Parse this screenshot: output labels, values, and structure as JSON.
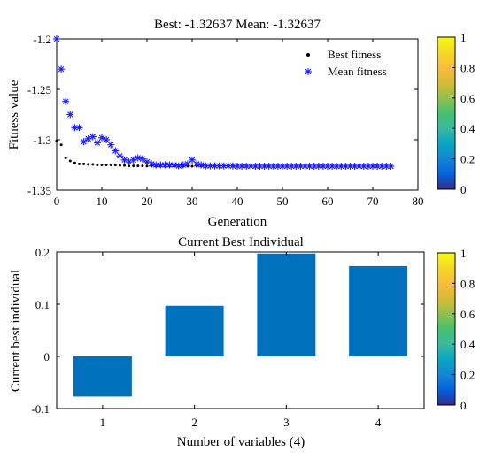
{
  "chart_data": [
    {
      "type": "scatter",
      "title": "Best: -1.32637 Mean: -1.32637",
      "xlabel": "Generation",
      "ylabel": "Fitness value",
      "xlim": [
        0,
        80
      ],
      "ylim": [
        -1.35,
        -1.2
      ],
      "x_ticks": [
        "0",
        "10",
        "20",
        "30",
        "40",
        "50",
        "60",
        "70",
        "80"
      ],
      "y_ticks": [
        "-1.2",
        "-1.25",
        "-1.3",
        "-1.35"
      ],
      "legend_position": "top-right",
      "series": [
        {
          "name": "Best fitness",
          "marker": "dot",
          "color": "#000000",
          "x": [
            0,
            1,
            2,
            3,
            4,
            5,
            6,
            7,
            8,
            9,
            10,
            11,
            12,
            13,
            14,
            15,
            16,
            17,
            18,
            19,
            20,
            21,
            22,
            23,
            24,
            25,
            26,
            27,
            28,
            29,
            30,
            31,
            32,
            33,
            34,
            35,
            36,
            37,
            38,
            39,
            40,
            41,
            42,
            43,
            44,
            45,
            46,
            47,
            48,
            49,
            50,
            51,
            52,
            53,
            54,
            55,
            56,
            57,
            58,
            59,
            60,
            61,
            62,
            63,
            64,
            65,
            66,
            67,
            68,
            69,
            70,
            71,
            72,
            73,
            74
          ],
          "y": [
            -1.301,
            -1.305,
            -1.318,
            -1.321,
            -1.323,
            -1.324,
            -1.324,
            -1.3245,
            -1.3245,
            -1.325,
            -1.325,
            -1.325,
            -1.325,
            -1.325,
            -1.3255,
            -1.3255,
            -1.326,
            -1.326,
            -1.326,
            -1.326,
            -1.3262,
            -1.3262,
            -1.3263,
            -1.3263,
            -1.3263,
            -1.3263,
            -1.3263,
            -1.3263,
            -1.3263,
            -1.3263,
            -1.3263,
            -1.3263,
            -1.3263,
            -1.3263,
            -1.3263,
            -1.3263,
            -1.3263,
            -1.3263,
            -1.3263,
            -1.3263,
            -1.3263,
            -1.3263,
            -1.3263,
            -1.3263,
            -1.3263,
            -1.3263,
            -1.3263,
            -1.3263,
            -1.3263,
            -1.3263,
            -1.3263,
            -1.3263,
            -1.3263,
            -1.3263,
            -1.3263,
            -1.3263,
            -1.3263,
            -1.3263,
            -1.3263,
            -1.3263,
            -1.3263,
            -1.3263,
            -1.3263,
            -1.3263,
            -1.3263,
            -1.3263,
            -1.3263,
            -1.3263,
            -1.3263,
            -1.3263,
            -1.3263,
            -1.3263,
            -1.3263,
            -1.3263,
            -1.3263
          ]
        },
        {
          "name": "Mean fitness",
          "marker": "asterisk",
          "color": "#1a1aff",
          "x": [
            0,
            1,
            2,
            3,
            4,
            5,
            6,
            7,
            8,
            9,
            10,
            11,
            12,
            13,
            14,
            15,
            16,
            17,
            18,
            19,
            20,
            21,
            22,
            23,
            24,
            25,
            26,
            27,
            28,
            29,
            30,
            31,
            32,
            33,
            34,
            35,
            36,
            37,
            38,
            39,
            40,
            41,
            42,
            43,
            44,
            45,
            46,
            47,
            48,
            49,
            50,
            51,
            52,
            53,
            54,
            55,
            56,
            57,
            58,
            59,
            60,
            61,
            62,
            63,
            64,
            65,
            66,
            67,
            68,
            69,
            70,
            71,
            72,
            73,
            74
          ],
          "y": [
            -1.2,
            -1.23,
            -1.262,
            -1.275,
            -1.288,
            -1.288,
            -1.302,
            -1.299,
            -1.297,
            -1.303,
            -1.298,
            -1.3,
            -1.305,
            -1.311,
            -1.316,
            -1.32,
            -1.322,
            -1.32,
            -1.318,
            -1.319,
            -1.322,
            -1.324,
            -1.325,
            -1.325,
            -1.325,
            -1.325,
            -1.325,
            -1.326,
            -1.325,
            -1.324,
            -1.32,
            -1.324,
            -1.325,
            -1.326,
            -1.326,
            -1.326,
            -1.326,
            -1.326,
            -1.326,
            -1.326,
            -1.3263,
            -1.3263,
            -1.3263,
            -1.3263,
            -1.3263,
            -1.3263,
            -1.3263,
            -1.3263,
            -1.3263,
            -1.3263,
            -1.3263,
            -1.3263,
            -1.3263,
            -1.3263,
            -1.3263,
            -1.3263,
            -1.3263,
            -1.3263,
            -1.3263,
            -1.3263,
            -1.3263,
            -1.3263,
            -1.3263,
            -1.3263,
            -1.3263,
            -1.3263,
            -1.3263,
            -1.3263,
            -1.3263,
            -1.3263,
            -1.3263,
            -1.3263,
            -1.3263,
            -1.3263,
            -1.3263
          ]
        }
      ],
      "colorbar": {
        "ticks": [
          "1",
          "0.8",
          "0.6",
          "0.4",
          "0.2",
          "0"
        ],
        "colormap": "parula"
      }
    },
    {
      "type": "bar",
      "title": "Current Best Individual",
      "xlabel": "Number of variables (4)",
      "ylabel": "Current best individual",
      "categories": [
        "1",
        "2",
        "3",
        "4"
      ],
      "values": [
        -0.077,
        0.097,
        0.197,
        0.173
      ],
      "ylim": [
        -0.1,
        0.2
      ],
      "y_ticks": [
        "0.2",
        "0.1",
        "0",
        "-0.1"
      ],
      "bar_color": "#0072bd",
      "colorbar": {
        "ticks": [
          "1",
          "0.8",
          "0.6",
          "0.4",
          "0.2",
          "0"
        ],
        "colormap": "parula"
      }
    }
  ]
}
